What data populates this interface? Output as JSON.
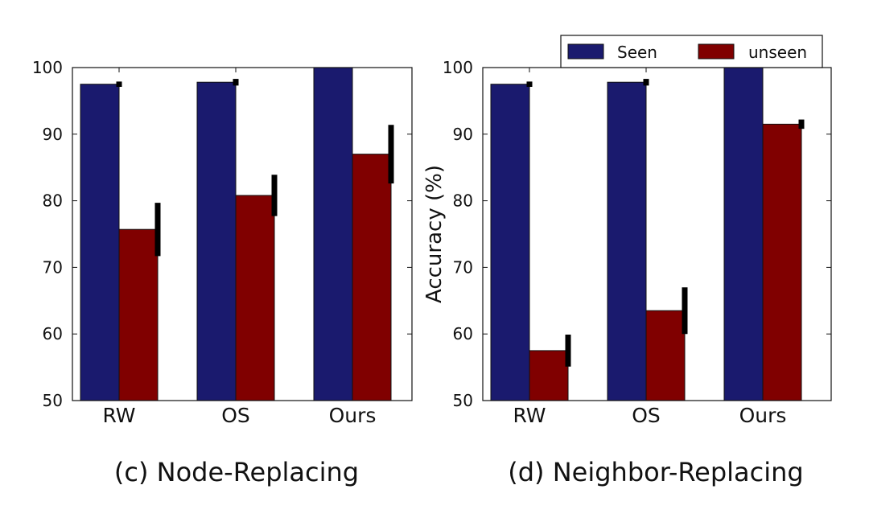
{
  "legend": {
    "items": [
      {
        "label": "Seen",
        "color": "#1a1a6e"
      },
      {
        "label": "unseen",
        "color": "#800000"
      }
    ]
  },
  "chart_data": [
    {
      "type": "bar",
      "title": "(c) Node-Replacing",
      "xlabel": "",
      "ylabel": "",
      "ylim": [
        50,
        100
      ],
      "yticks": [
        "50",
        "60",
        "70",
        "80",
        "90",
        "100"
      ],
      "categories": [
        "RW",
        "OS",
        "Ours"
      ],
      "series": [
        {
          "name": "Seen",
          "values": [
            97.5,
            97.8,
            100
          ],
          "errors": [
            0.4,
            0.5,
            0
          ]
        },
        {
          "name": "unseen",
          "values": [
            75.7,
            80.8,
            87.0
          ],
          "errors": [
            4.0,
            3.1,
            4.4
          ]
        }
      ]
    },
    {
      "type": "bar",
      "title": "(d) Neighbor-Replacing",
      "xlabel": "",
      "ylabel": "Accuracy (%)",
      "ylim": [
        50,
        100
      ],
      "yticks": [
        "50",
        "60",
        "70",
        "80",
        "90",
        "100"
      ],
      "categories": [
        "RW",
        "OS",
        "Ours"
      ],
      "series": [
        {
          "name": "Seen",
          "values": [
            97.5,
            97.8,
            100
          ],
          "errors": [
            0.4,
            0.5,
            0
          ]
        },
        {
          "name": "unseen",
          "values": [
            57.5,
            63.5,
            91.5
          ],
          "errors": [
            2.4,
            3.5,
            0.7
          ]
        }
      ]
    }
  ]
}
